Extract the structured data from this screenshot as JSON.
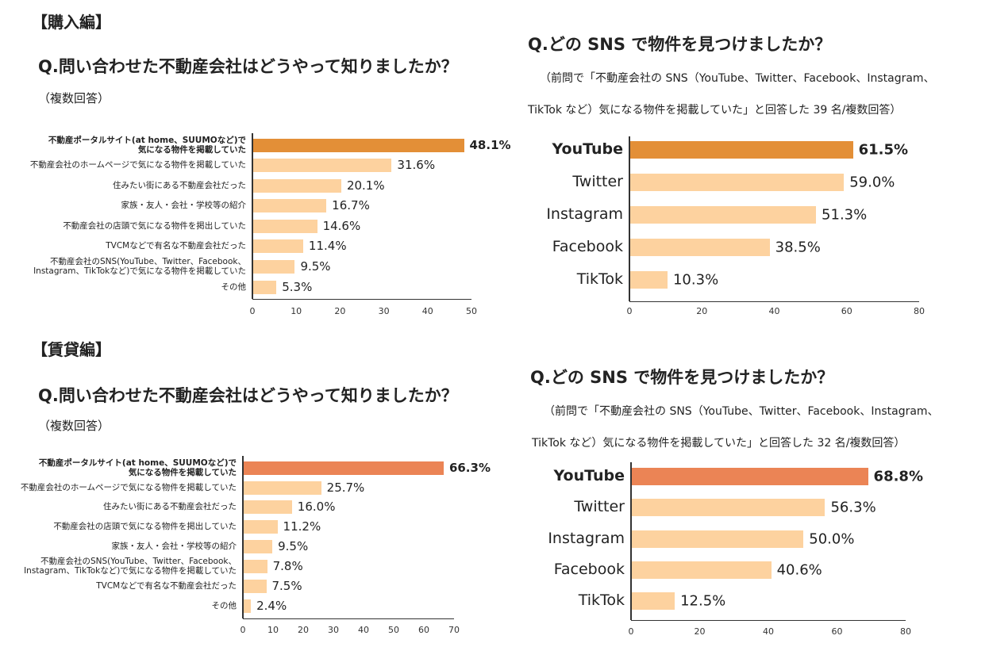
{
  "purchase": {
    "section": "【購入編】",
    "question": "Q.問い合わせた不動産会社はどうやって知りましたか？",
    "note": "（複数回答）",
    "sns_question": "Q.どの SNS で物件を見つけましたか？",
    "sns_note_line1": "（前問で「不動産会社の SNS（YouTube、Twitter、Facebook、Instagram、",
    "sns_note_line2": "TikTok など）気になる物件を掲載していた」と回答した 39 名/複数回答）"
  },
  "rental": {
    "section": "【賃貸編】",
    "question": "Q.問い合わせた不動産会社はどうやって知りましたか？",
    "note": "（複数回答）",
    "sns_question": "Q.どの SNS で物件を見つけましたか？",
    "sns_note_line1": "（前問で「不動産会社の SNS（YouTube、Twitter、Facebook、Instagram、",
    "sns_note_line2": "TikTok など）気になる物件を掲載していた」と回答した 32 名/複数回答）"
  },
  "colors": {
    "purchase_highlight": "#E38F37",
    "rental_highlight": "#EB8455",
    "normal": "#FDD29F"
  },
  "chart_data": [
    {
      "type": "bar",
      "orientation": "horizontal",
      "title": "購入編: 問い合わせた不動産会社はどうやって知りましたか？",
      "xlim": [
        0,
        50
      ],
      "xticks": [
        0,
        10,
        20,
        30,
        40,
        50
      ],
      "categories": [
        "不動産ポータルサイト(at home、SUUMOなど)で\n気になる物件を掲載していた",
        "不動産会社のホームページで気になる物件を掲載していた",
        "住みたい街にある不動産会社だった",
        "家族・友人・会社・学校等の紹介",
        "不動産会社の店頭で気になる物件を掲出していた",
        "TVCMなどで有名な不動産会社だった",
        "不動産会社のSNS(YouTube、Twitter、Facebook、\nInstagram、TikTokなど)で気になる物件を掲載していた",
        "その他"
      ],
      "values": [
        48.1,
        31.6,
        20.1,
        16.7,
        14.6,
        11.4,
        9.5,
        5.3
      ],
      "labels": [
        "48.1%",
        "31.6%",
        "20.1%",
        "16.7%",
        "14.6%",
        "11.4%",
        "9.5%",
        "5.3%"
      ]
    },
    {
      "type": "bar",
      "orientation": "horizontal",
      "title": "購入編: どの SNS で物件を見つけましたか？",
      "xlim": [
        0,
        80
      ],
      "xticks": [
        0,
        20,
        40,
        60,
        80
      ],
      "categories": [
        "YouTube",
        "Twitter",
        "Instagram",
        "Facebook",
        "TikTok"
      ],
      "values": [
        61.5,
        59.0,
        51.3,
        38.5,
        10.3
      ],
      "labels": [
        "61.5%",
        "59.0%",
        "51.3%",
        "38.5%",
        "10.3%"
      ]
    },
    {
      "type": "bar",
      "orientation": "horizontal",
      "title": "賃貸編: 問い合わせた不動産会社はどうやって知りましたか？",
      "xlim": [
        0,
        70
      ],
      "xticks": [
        0,
        10,
        20,
        30,
        40,
        50,
        60,
        70
      ],
      "categories": [
        "不動産ポータルサイト(at home、SUUMOなど)で\n気になる物件を掲載していた",
        "不動産会社のホームページで気になる物件を掲載していた",
        "住みたい街にある不動産会社だった",
        "不動産会社の店頭で気になる物件を掲出していた",
        "家族・友人・会社・学校等の紹介",
        "不動産会社のSNS(YouTube、Twitter、Facebook、\nInstagram、TikTokなど)で気になる物件を掲載していた",
        "TVCMなどで有名な不動産会社だった",
        "その他"
      ],
      "values": [
        66.3,
        25.7,
        16.0,
        11.2,
        9.5,
        7.8,
        7.5,
        2.4
      ],
      "labels": [
        "66.3%",
        "25.7%",
        "16.0%",
        "11.2%",
        "9.5%",
        "7.8%",
        "7.5%",
        "2.4%"
      ]
    },
    {
      "type": "bar",
      "orientation": "horizontal",
      "title": "賃貸編: どの SNS で物件を見つけましたか？",
      "xlim": [
        0,
        80
      ],
      "xticks": [
        0,
        20,
        40,
        60,
        80
      ],
      "categories": [
        "YouTube",
        "Twitter",
        "Instagram",
        "Facebook",
        "TikTok"
      ],
      "values": [
        68.8,
        56.3,
        50.0,
        40.6,
        12.5
      ],
      "labels": [
        "68.8%",
        "56.3%",
        "50.0%",
        "40.6%",
        "12.5%"
      ]
    }
  ]
}
